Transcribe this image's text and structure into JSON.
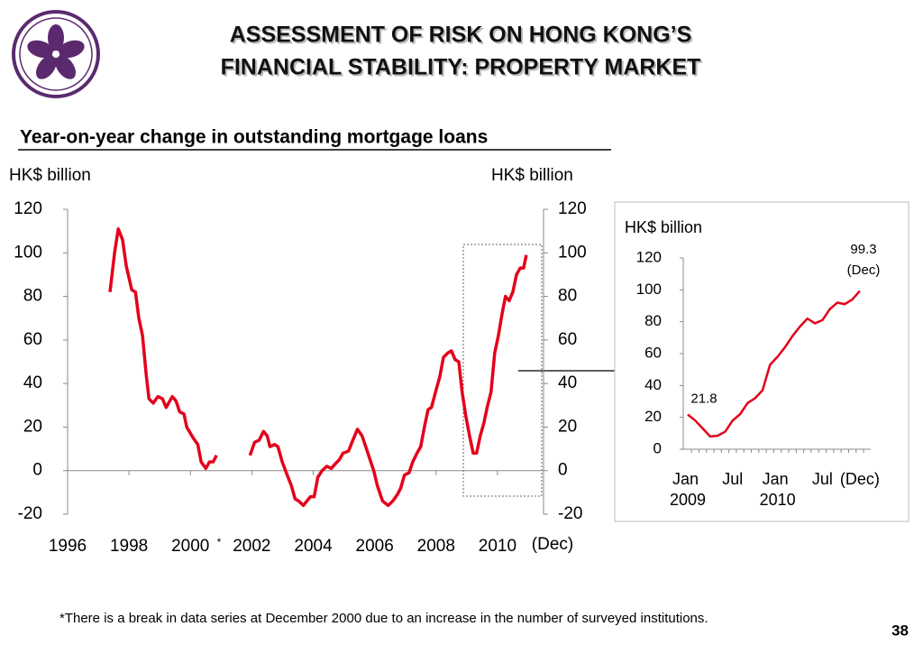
{
  "header": {
    "title": [
      "ASSESSMENT OF RISK ON HONG KONG’S",
      "FINANCIAL STABILITY: PROPERTY MARKET"
    ],
    "subtitle": "Year-on-year change in outstanding mortgage loans"
  },
  "chart_data": [
    {
      "type": "line",
      "y_label": "HK$ billion",
      "y2_label": "HK$ billion",
      "x": [
        1997.38,
        1997.53,
        1997.65,
        1997.79,
        1997.91,
        1998.09,
        1998.21,
        1998.32,
        1998.44,
        1998.56,
        1998.65,
        1998.79,
        1998.94,
        1999.09,
        1999.21,
        1999.41,
        1999.53,
        1999.65,
        1999.79,
        1999.88,
        2000.09,
        2000.24,
        2000.35,
        2000.5,
        2000.62,
        2000.74,
        2000.85,
        null,
        2001.94,
        2002.09,
        2002.24,
        2002.38,
        2002.5,
        2002.59,
        2002.74,
        2002.85,
        2002.99,
        2003.15,
        2003.29,
        2003.41,
        2003.53,
        2003.68,
        2003.79,
        2003.91,
        2004.03,
        2004.15,
        2004.29,
        2004.44,
        2004.59,
        2004.71,
        2004.85,
        2004.97,
        2005.15,
        2005.29,
        2005.44,
        2005.59,
        2005.71,
        2005.85,
        2005.97,
        2006.09,
        2006.26,
        2006.44,
        2006.59,
        2006.74,
        2006.85,
        2006.97,
        2007.12,
        2007.24,
        2007.38,
        2007.5,
        2007.62,
        2007.74,
        2007.85,
        2008.0,
        2008.12,
        2008.24,
        2008.38,
        2008.5,
        2008.62,
        2008.74,
        2008.85,
        2008.97,
        2009.09,
        2009.21,
        2009.32,
        2009.44,
        2009.56,
        2009.68,
        2009.79,
        2009.91,
        2010.03,
        2010.15,
        2010.26,
        2010.38,
        2010.5,
        2010.62,
        2010.74,
        2010.85,
        2010.94
      ],
      "series": [
        {
          "color": "#e3001b",
          "values": [
            82,
            100,
            111,
            106,
            94,
            83,
            82,
            70,
            62,
            44,
            33,
            31,
            34,
            33,
            29,
            34,
            32,
            27,
            26,
            20,
            15,
            12,
            4,
            1,
            4,
            4,
            7,
            null,
            7,
            13,
            14,
            18,
            16,
            11,
            12,
            11,
            4,
            -2,
            -7,
            -13,
            -14,
            -16,
            -14,
            -12,
            -12,
            -3,
            0,
            2,
            1,
            3,
            5,
            8,
            9,
            14,
            19,
            16,
            11,
            5,
            0,
            -7,
            -14,
            -16,
            -14,
            -11,
            -8,
            -2,
            -1,
            4,
            8,
            11,
            20,
            28,
            29,
            37,
            43,
            52,
            54,
            55,
            51,
            50,
            36,
            25,
            16,
            8,
            8,
            16,
            22,
            30,
            36,
            54,
            62,
            72,
            80,
            78,
            82,
            90,
            93,
            93,
            99
          ]
        }
      ],
      "xlim": [
        1996,
        2011.5
      ],
      "xticks": [
        1996,
        1998,
        2000,
        2002,
        2004,
        2006,
        2008,
        2010
      ],
      "ylim": [
        -20,
        120
      ],
      "yticks": [
        -20,
        0,
        20,
        40,
        60,
        80,
        100,
        120
      ],
      "y2lim": [
        -20,
        120
      ],
      "y2ticks": [
        -20,
        0,
        20,
        40,
        60,
        80,
        100,
        120
      ],
      "annotations": [
        "(Dec)",
        "*"
      ]
    },
    {
      "type": "line",
      "y_label": "HK$ billion",
      "categories": [
        "Jan 2009",
        null,
        null,
        null,
        null,
        null,
        "Jul",
        null,
        null,
        null,
        null,
        null,
        "Jan 2010",
        null,
        null,
        null,
        null,
        null,
        "Jul",
        null,
        null,
        null,
        null,
        "(Dec)"
      ],
      "series": [
        {
          "color": "#e3001b",
          "values": [
            21.8,
            18,
            13,
            8,
            8.5,
            11,
            18,
            22,
            29,
            32,
            37,
            53,
            58,
            64,
            71,
            77,
            82,
            79,
            81,
            88,
            92,
            91,
            94,
            99.3
          ]
        }
      ],
      "ylim": [
        0,
        120
      ],
      "yticks": [
        0,
        20,
        40,
        60,
        80,
        100,
        120
      ],
      "annotations": [
        "(Dec)"
      ]
    }
  ],
  "footnote": "*There is a break in data series at December 2000 due to an increase in the number of surveyed institutions.",
  "page_number": "38"
}
